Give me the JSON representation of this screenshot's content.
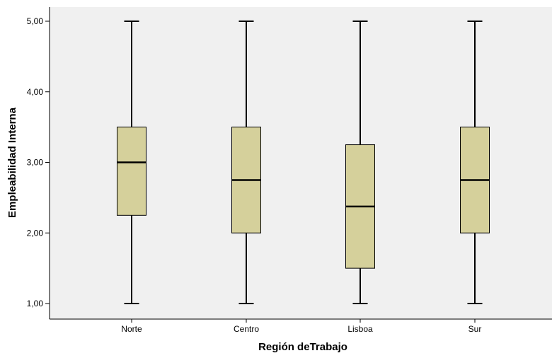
{
  "chart_data": {
    "type": "boxplot",
    "xlabel": "Región deTrabajo",
    "ylabel": "Empleabilidad Interna",
    "ylim": [
      0.8,
      5.2
    ],
    "yticks": [
      {
        "value": 1,
        "label": "1,00"
      },
      {
        "value": 2,
        "label": "2,00"
      },
      {
        "value": 3,
        "label": "3,00"
      },
      {
        "value": 4,
        "label": "4,00"
      },
      {
        "value": 5,
        "label": "5,00"
      }
    ],
    "categories": [
      "Norte",
      "Centro",
      "Lisboa",
      "Sur"
    ],
    "boxes": [
      {
        "category": "Norte",
        "min": 1.0,
        "q1": 2.25,
        "median": 3.0,
        "q3": 3.5,
        "max": 5.0
      },
      {
        "category": "Centro",
        "min": 1.0,
        "q1": 2.0,
        "median": 2.75,
        "q3": 3.5,
        "max": 5.0
      },
      {
        "category": "Lisboa",
        "min": 1.0,
        "q1": 1.5,
        "median": 2.375,
        "q3": 3.25,
        "max": 5.0
      },
      {
        "category": "Sur",
        "min": 1.0,
        "q1": 2.0,
        "median": 2.75,
        "q3": 3.5,
        "max": 5.0
      }
    ],
    "grid": false,
    "colors": {
      "plot_background": "#f0f0f0",
      "box_fill": "#d5d09b",
      "box_stroke": "#000000",
      "axis": "#000000"
    }
  }
}
